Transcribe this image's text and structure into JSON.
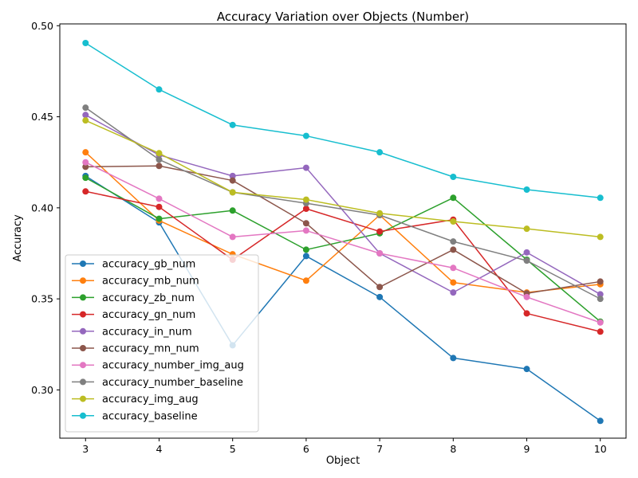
{
  "chart_data": {
    "type": "line",
    "title": "Accuracy Variation over Objects (Number)",
    "xlabel": "Object",
    "ylabel": "Accuracy",
    "x": [
      3,
      4,
      5,
      6,
      7,
      8,
      9,
      10
    ],
    "xlim": [
      2.65,
      10.35
    ],
    "ylim": [
      0.2735,
      0.501
    ],
    "yticks": [
      0.3,
      0.35,
      0.4,
      0.45,
      0.5
    ],
    "ytick_labels": [
      "0.30",
      "0.35",
      "0.40",
      "0.45",
      "0.50"
    ],
    "xtick_labels": [
      "3",
      "4",
      "5",
      "6",
      "7",
      "8",
      "9",
      "10"
    ],
    "grid": false,
    "legend_position": "lower-left",
    "series": [
      {
        "name": "accuracy_gb_num",
        "color": "#1f77b4",
        "values": [
          0.4175,
          0.392,
          0.3245,
          0.3735,
          0.351,
          0.3175,
          0.3115,
          0.283
        ]
      },
      {
        "name": "accuracy_mb_num",
        "color": "#ff7f0e",
        "values": [
          0.4305,
          0.393,
          0.3745,
          0.36,
          0.396,
          0.359,
          0.3535,
          0.358
        ]
      },
      {
        "name": "accuracy_zb_num",
        "color": "#2ca02c",
        "values": [
          0.4165,
          0.394,
          0.3985,
          0.377,
          0.386,
          0.4055,
          0.3715,
          0.3375
        ]
      },
      {
        "name": "accuracy_gn_num",
        "color": "#d62728",
        "values": [
          0.409,
          0.4005,
          0.3715,
          0.3995,
          0.387,
          0.3935,
          0.342,
          0.332
        ]
      },
      {
        "name": "accuracy_in_num",
        "color": "#9467bd",
        "values": [
          0.451,
          0.429,
          0.4175,
          0.422,
          0.375,
          0.3535,
          0.3755,
          0.3525
        ]
      },
      {
        "name": "accuracy_mn_num",
        "color": "#8c564b",
        "values": [
          0.4225,
          0.423,
          0.415,
          0.3915,
          0.3565,
          0.377,
          0.353,
          0.3595
        ]
      },
      {
        "name": "accuracy_number_img_aug",
        "color": "#e377c2",
        "values": [
          0.425,
          0.405,
          0.384,
          0.3875,
          0.375,
          0.367,
          0.351,
          0.337
        ]
      },
      {
        "name": "accuracy_number_baseline",
        "color": "#7f7f7f",
        "values": [
          0.455,
          0.4265,
          0.4085,
          0.4025,
          0.396,
          0.3815,
          0.371,
          0.35
        ]
      },
      {
        "name": "accuracy_img_aug",
        "color": "#bcbd22",
        "values": [
          0.448,
          0.43,
          0.4085,
          0.4045,
          0.397,
          0.3925,
          0.3885,
          0.384
        ]
      },
      {
        "name": "accuracy_baseline",
        "color": "#17becf",
        "values": [
          0.4905,
          0.465,
          0.4455,
          0.4395,
          0.4305,
          0.417,
          0.41,
          0.4055
        ]
      }
    ]
  }
}
